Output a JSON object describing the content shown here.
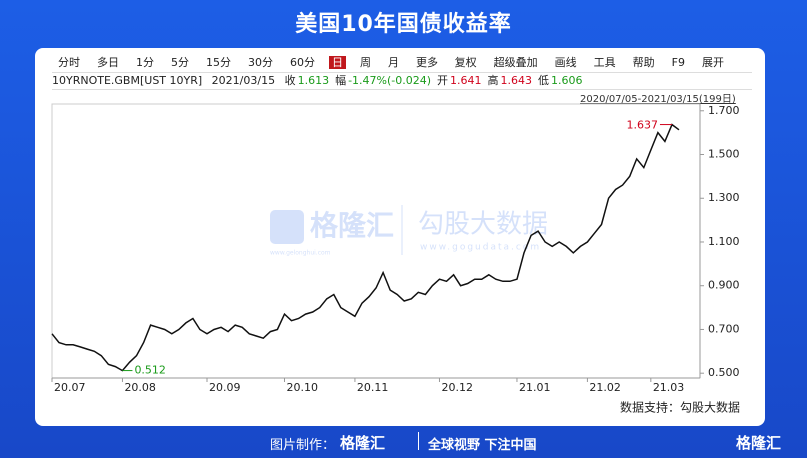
{
  "header": {
    "title": "美国10年国债收益率"
  },
  "toolbar": {
    "left": [
      "分时",
      "多日",
      "1分",
      "5分",
      "15分",
      "30分",
      "60分",
      "日",
      "周",
      "月",
      "更多"
    ],
    "selected": "日",
    "right": [
      "复权",
      "超级叠加",
      "画线",
      "工具",
      "帮助",
      "F9",
      "展开"
    ]
  },
  "info_bar": {
    "symbol": "10YRNOTE.GBM[UST 10YR]",
    "date": "2021/03/15",
    "items": [
      {
        "label": "收",
        "value": "1.613",
        "color": "#1a9b1a"
      },
      {
        "label": "幅",
        "value": "-1.47%(-0.024)",
        "color": "#1a9b1a"
      },
      {
        "label": "开",
        "value": "1.641",
        "color": "#d0021b"
      },
      {
        "label": "高",
        "value": "1.643",
        "color": "#d0021b"
      },
      {
        "label": "低",
        "value": "1.606",
        "color": "#1a9b1a"
      }
    ],
    "range": "2020/07/05-2021/03/15(199日)"
  },
  "watermark": {
    "brand": "格隆汇",
    "brand_url": "www.gelonghui.com",
    "data": "勾股大数据",
    "data_url": "www.gogudata.com"
  },
  "chart_data": {
    "type": "line",
    "categories": [
      "20.07",
      null,
      null,
      null,
      null,
      null,
      null,
      null,
      null,
      null,
      "20.08",
      null,
      null,
      null,
      null,
      null,
      null,
      null,
      null,
      null,
      null,
      null,
      "20.09",
      null,
      null,
      null,
      null,
      null,
      null,
      null,
      null,
      null,
      null,
      "20.10",
      null,
      null,
      null,
      null,
      null,
      null,
      null,
      null,
      null,
      "20.11",
      null,
      null,
      null,
      null,
      null,
      null,
      null,
      null,
      null,
      null,
      null,
      "20.12",
      null,
      null,
      null,
      null,
      null,
      null,
      null,
      null,
      null,
      null,
      "21.01",
      null,
      null,
      null,
      null,
      null,
      null,
      null,
      null,
      null,
      "21.02",
      null,
      null,
      null,
      null,
      null,
      null,
      null,
      null,
      "21.03",
      null,
      null,
      null,
      null
    ],
    "series": [
      {
        "name": "10YRNOTE",
        "color": "#111111",
        "values": [
          0.68,
          0.64,
          0.63,
          0.63,
          0.62,
          0.61,
          0.6,
          0.58,
          0.54,
          0.53,
          0.512,
          0.55,
          0.58,
          0.64,
          0.72,
          0.71,
          0.7,
          0.68,
          0.7,
          0.73,
          0.75,
          0.7,
          0.68,
          0.7,
          0.71,
          0.69,
          0.72,
          0.71,
          0.68,
          0.67,
          0.66,
          0.69,
          0.7,
          0.77,
          0.74,
          0.75,
          0.77,
          0.78,
          0.8,
          0.84,
          0.86,
          0.8,
          0.78,
          0.76,
          0.82,
          0.85,
          0.89,
          0.96,
          0.88,
          0.86,
          0.83,
          0.84,
          0.87,
          0.86,
          0.9,
          0.93,
          0.92,
          0.95,
          0.9,
          0.91,
          0.93,
          0.93,
          0.95,
          0.93,
          0.92,
          0.92,
          0.93,
          1.05,
          1.13,
          1.15,
          1.1,
          1.08,
          1.1,
          1.08,
          1.05,
          1.08,
          1.1,
          1.14,
          1.18,
          1.3,
          1.34,
          1.36,
          1.4,
          1.48,
          1.44,
          1.52,
          1.6,
          1.56,
          1.637,
          1.613
        ]
      }
    ],
    "max_label": "1.637",
    "min_label": "0.512",
    "max_color": "#d0021b",
    "min_color": "#1a9b1a",
    "ylim": [
      0.478,
      1.731
    ],
    "yticks": [
      {
        "value": 0.5,
        "label": "0.500"
      },
      {
        "value": 0.7,
        "label": "0.700"
      },
      {
        "value": 0.9,
        "label": "0.900"
      },
      {
        "value": 1.1,
        "label": "1.100"
      },
      {
        "value": 1.3,
        "label": "1.300"
      },
      {
        "value": 1.5,
        "label": "1.500"
      },
      {
        "value": 1.7,
        "label": "1.700"
      }
    ],
    "source": "数据支持：勾股大数据"
  },
  "footer": {
    "maker": "图片制作：",
    "brand": "格隆汇",
    "slogan": "全球视野 下注中国",
    "corner_brand": "格隆汇"
  }
}
